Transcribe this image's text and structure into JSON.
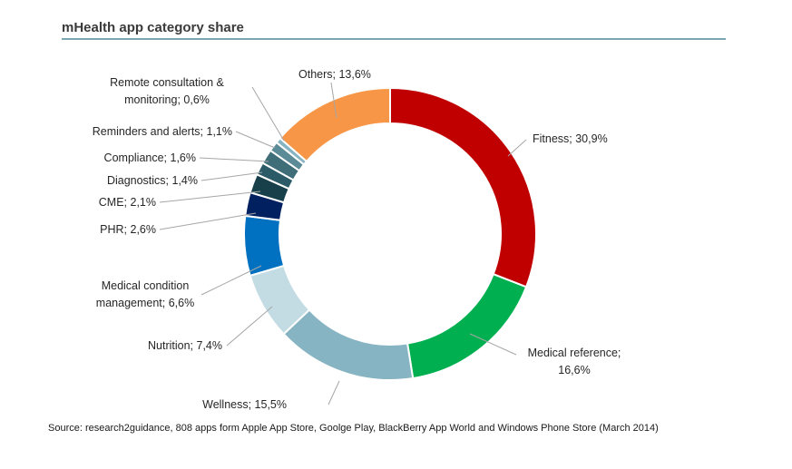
{
  "title": "mHealth app category share",
  "source": "Source: research2guidance,  808 apps form Apple App Store, Goolge Play, BlackBerry App World and Windows Phone Store (March 2014)",
  "chart_data": {
    "type": "pie",
    "subtype": "donut",
    "title": "mHealth app category share",
    "unit": "%",
    "slices": [
      {
        "name": "Fitness",
        "value": 30.9,
        "label_lines": [
          "Fitness; 30,9%"
        ],
        "color": "#c00000"
      },
      {
        "name": "Medical reference",
        "value": 16.6,
        "label_lines": [
          "Medical reference;",
          "16,6%"
        ],
        "color": "#00b050"
      },
      {
        "name": "Wellness",
        "value": 15.5,
        "label_lines": [
          "Wellness; 15,5%"
        ],
        "color": "#86b4c2"
      },
      {
        "name": "Nutrition",
        "value": 7.4,
        "label_lines": [
          "Nutrition; 7,4%"
        ],
        "color": "#c3dce3"
      },
      {
        "name": "Medical condition management",
        "value": 6.6,
        "label_lines": [
          "Medical condition",
          "management; 6,6%"
        ],
        "color": "#0070c0"
      },
      {
        "name": "PHR",
        "value": 2.6,
        "label_lines": [
          "PHR; 2,6%"
        ],
        "color": "#002060"
      },
      {
        "name": "CME",
        "value": 2.1,
        "label_lines": [
          "CME; 2,1%"
        ],
        "color": "#17404b"
      },
      {
        "name": "Diagnostics",
        "value": 1.4,
        "label_lines": [
          "Diagnostics; 1,4%"
        ],
        "color": "#2b5b66"
      },
      {
        "name": "Compliance",
        "value": 1.6,
        "label_lines": [
          "Compliance; 1,6%"
        ],
        "color": "#3f6e78"
      },
      {
        "name": "Reminders and alerts",
        "value": 1.1,
        "label_lines": [
          "Reminders and alerts; 1,1%"
        ],
        "color": "#5a8b96"
      },
      {
        "name": "Remote consultation & monitoring",
        "value": 0.6,
        "label_lines": [
          "Remote consultation &",
          "monitoring; 0,6%"
        ],
        "color": "#86b4c2"
      },
      {
        "name": "Others",
        "value": 13.6,
        "label_lines": [
          "Others; 13,6%"
        ],
        "color": "#f79646"
      }
    ]
  }
}
